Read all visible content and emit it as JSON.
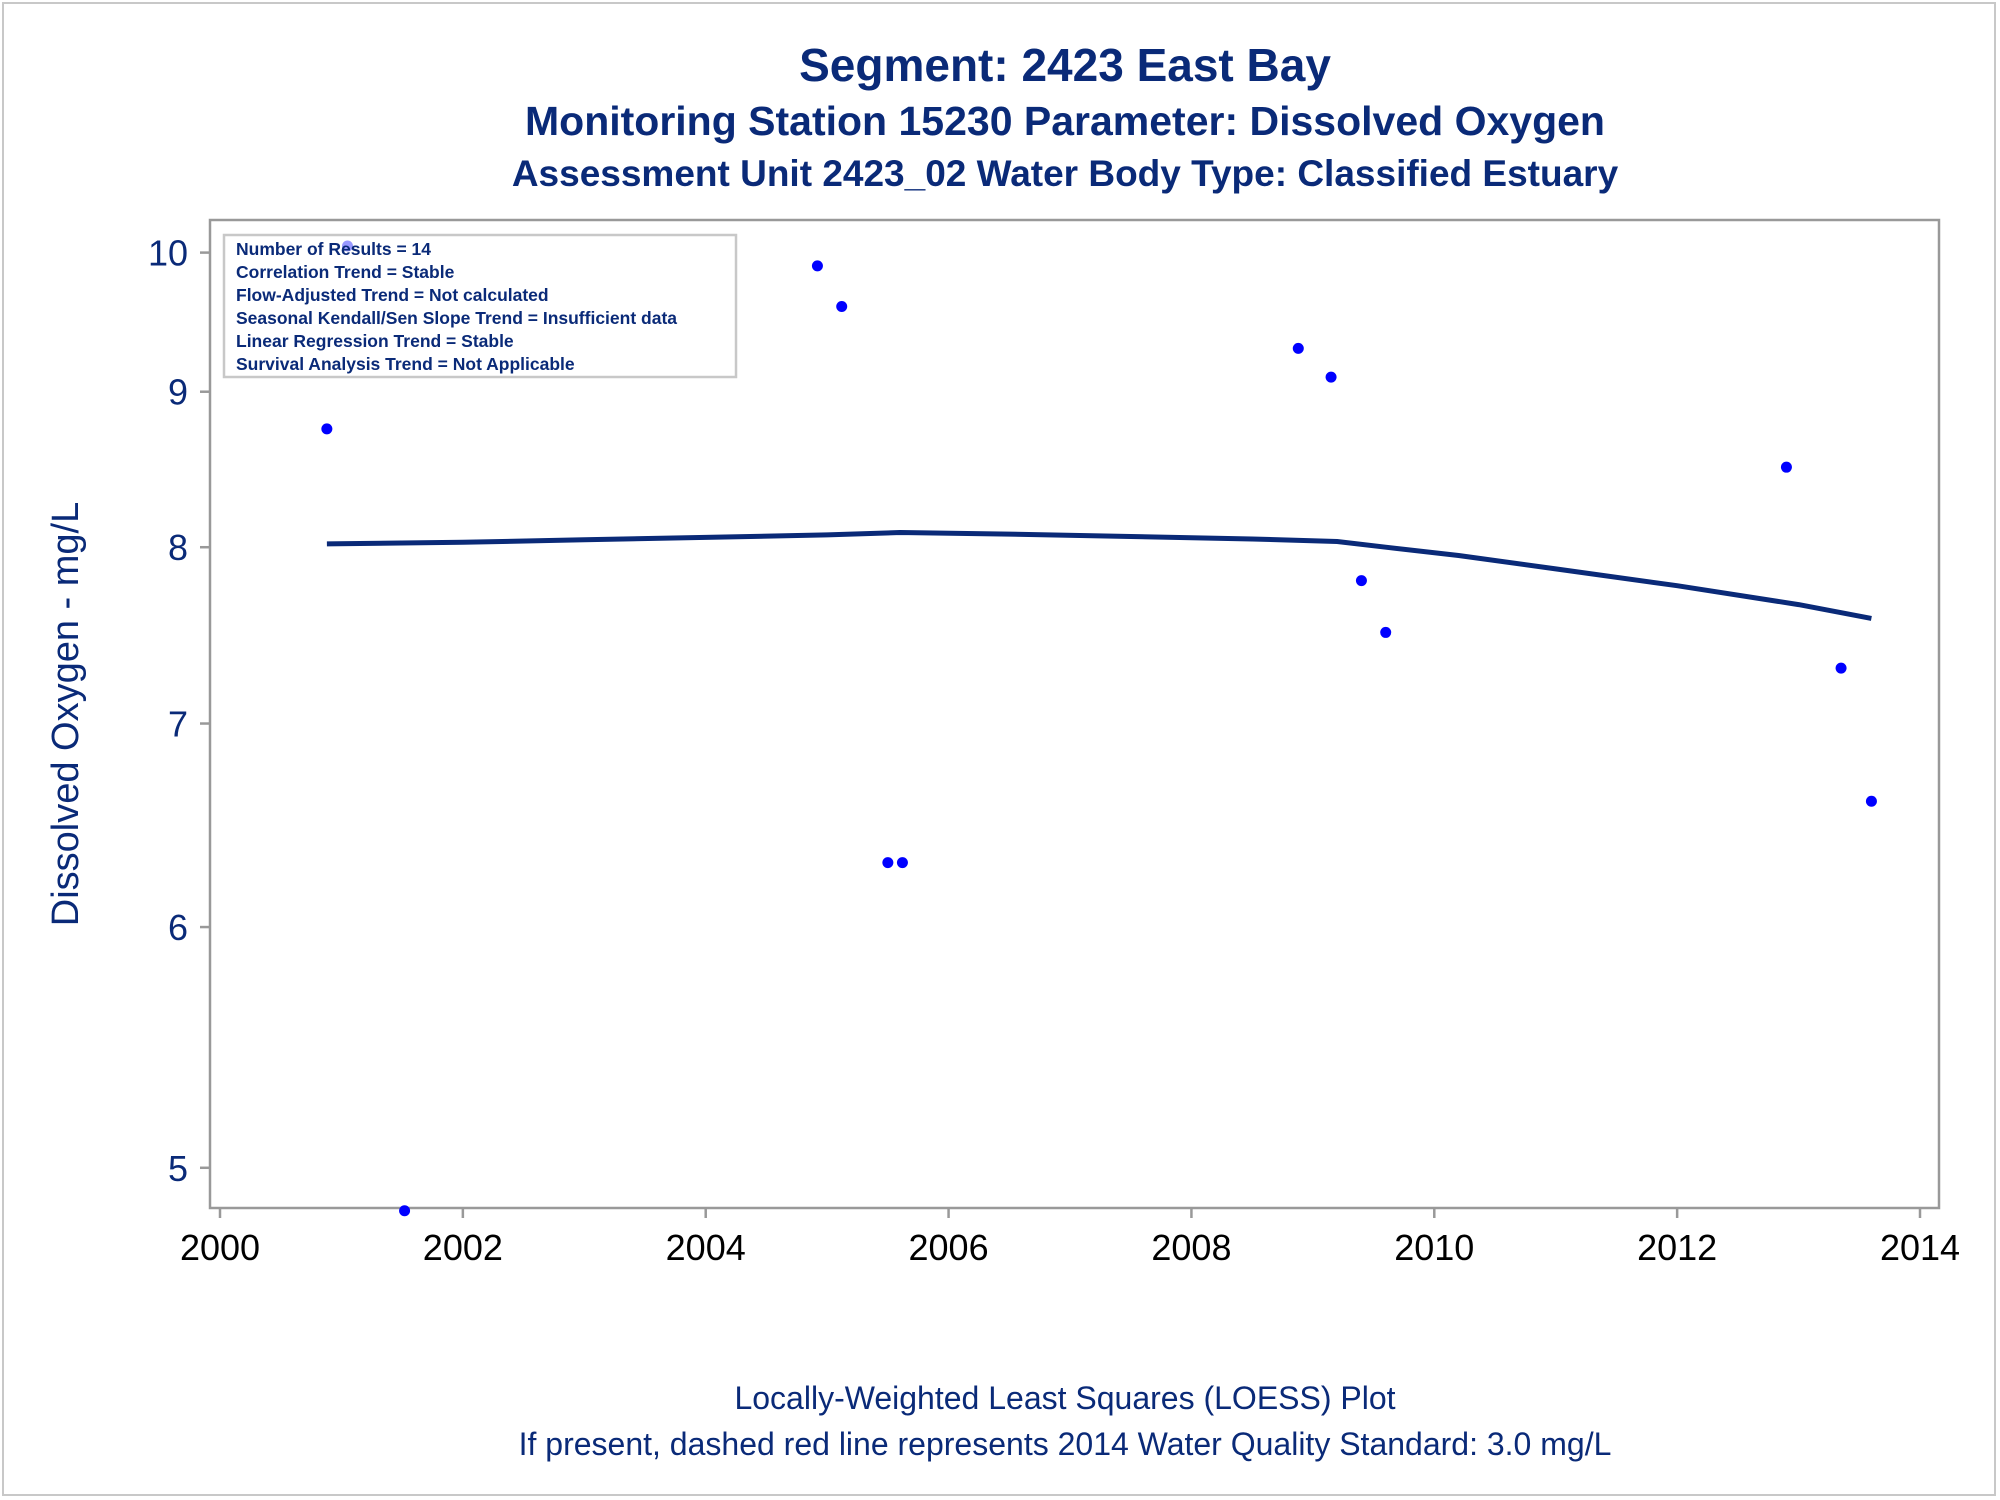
{
  "titles": {
    "line1": "Segment: 2423  East Bay",
    "line2": "Monitoring Station 15230 Parameter: Dissolved Oxygen",
    "line3": "Assessment Unit 2423_02   Water Body Type: Classified Estuary"
  },
  "footnotes": {
    "line1": "Locally-Weighted Least Squares (LOESS) Plot",
    "line2": "If present, dashed red line represents 2014 Water Quality Standard: 3.0 mg/L"
  },
  "info_box": [
    "Number of Results = 14",
    "Correlation Trend = Stable",
    "Flow-Adjusted Trend = Not calculated",
    "Seasonal Kendall/Sen Slope Trend = Insufficient data",
    "Linear Regression Trend = Stable",
    "Survival Analysis Trend = Not Applicable"
  ],
  "colors": {
    "text": "#0a2a78",
    "points": "#0000ff",
    "loess_line": "#0a2a78",
    "axis": "#999999"
  },
  "chart_data": {
    "type": "scatter",
    "ylabel": "Dissolved Oxygen - mg/L",
    "xlabel": "",
    "x_scale": "linear",
    "y_scale": "log",
    "xlim": [
      2000,
      2014.1
    ],
    "ylim": [
      4.85,
      10.25
    ],
    "xticks": [
      2000,
      2002,
      2004,
      2006,
      2008,
      2010,
      2012,
      2014
    ],
    "yticks": [
      5,
      6,
      7,
      8,
      9,
      10
    ],
    "grid": false,
    "series": [
      {
        "kind": "points",
        "points": [
          {
            "x": 2000.88,
            "y": 8.75
          },
          {
            "x": 2001.05,
            "y": 10.05
          },
          {
            "x": 2001.52,
            "y": 4.84
          },
          {
            "x": 2004.92,
            "y": 9.9
          },
          {
            "x": 2005.12,
            "y": 9.6
          },
          {
            "x": 2005.5,
            "y": 6.3
          },
          {
            "x": 2005.62,
            "y": 6.3
          },
          {
            "x": 2008.88,
            "y": 9.3
          },
          {
            "x": 2009.15,
            "y": 9.1
          },
          {
            "x": 2009.4,
            "y": 7.8
          },
          {
            "x": 2009.6,
            "y": 7.5
          },
          {
            "x": 2012.9,
            "y": 8.5
          },
          {
            "x": 2013.35,
            "y": 7.3
          },
          {
            "x": 2013.6,
            "y": 6.6
          }
        ]
      },
      {
        "kind": "loess",
        "points": [
          {
            "x": 2000.88,
            "y": 8.02
          },
          {
            "x": 2002.0,
            "y": 8.03
          },
          {
            "x": 2003.0,
            "y": 8.045
          },
          {
            "x": 2004.0,
            "y": 8.06
          },
          {
            "x": 2005.0,
            "y": 8.075
          },
          {
            "x": 2005.6,
            "y": 8.09
          },
          {
            "x": 2006.5,
            "y": 8.08
          },
          {
            "x": 2007.5,
            "y": 8.065
          },
          {
            "x": 2008.5,
            "y": 8.05
          },
          {
            "x": 2009.2,
            "y": 8.035
          },
          {
            "x": 2009.6,
            "y": 8.0
          },
          {
            "x": 2010.2,
            "y": 7.95
          },
          {
            "x": 2011.0,
            "y": 7.87
          },
          {
            "x": 2012.0,
            "y": 7.77
          },
          {
            "x": 2013.0,
            "y": 7.66
          },
          {
            "x": 2013.6,
            "y": 7.58
          }
        ]
      }
    ]
  }
}
